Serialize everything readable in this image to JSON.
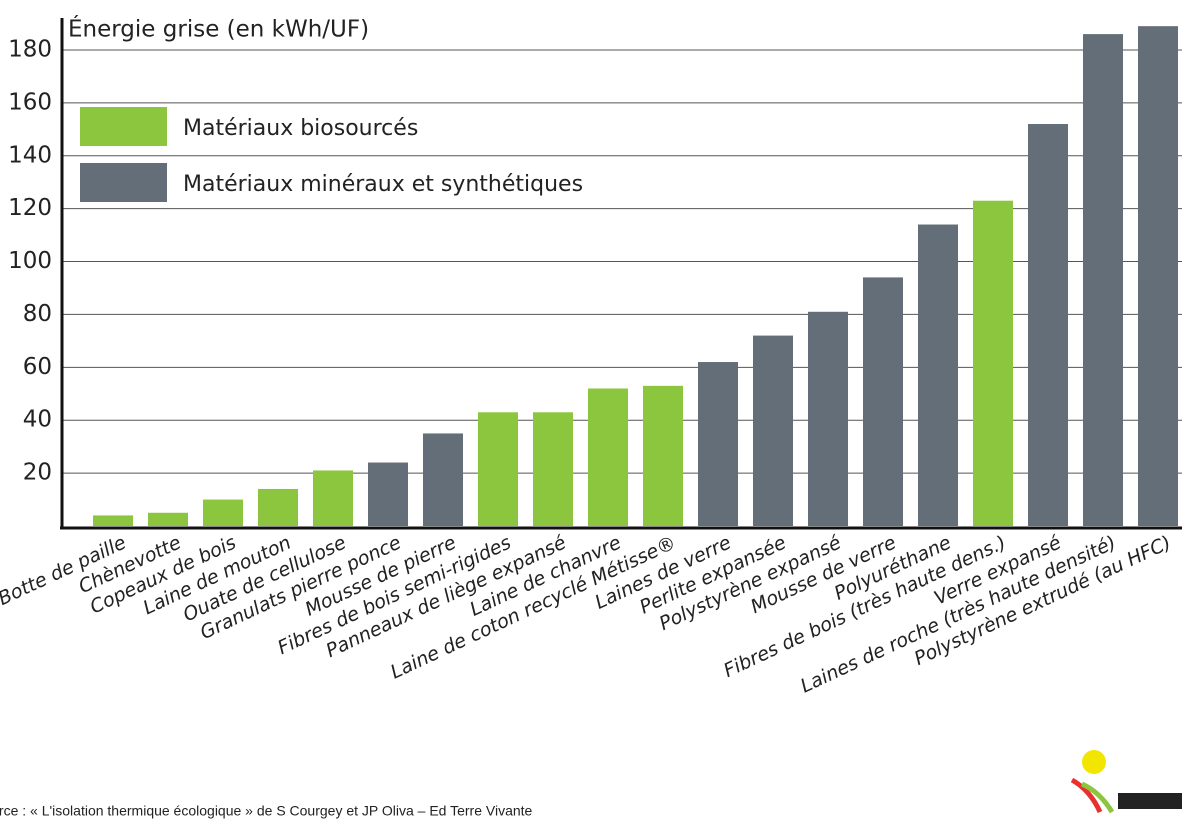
{
  "chart_data": {
    "type": "bar",
    "title": "Énergie grise (en kWh/UF)",
    "source": "Source :  « L'isolation thermique écologique » de S Courgey et JP Oliva – Ed Terre Vivante",
    "categories": [
      "Botte de paille",
      "Chènevotte",
      "Copeaux de bois",
      "Laine de mouton",
      "Ouate de cellulose",
      "Granulats pierre ponce",
      "Mousse de pierre",
      "Fibres de bois semi-rigides",
      "Panneaux de liège expansé",
      "Laine de chanvre",
      "Laine de coton recyclé Métisse®",
      "Laines de verre",
      "Perlite expansée",
      "Polystyrène expansé",
      "Mousse de verre",
      "Polyuréthane",
      "Fibres de bois (très haute dens.)",
      "Verre expansé",
      "Laines de roche (très haute densité)",
      "Polystyrène extrudé (au HFC)"
    ],
    "series": [
      {
        "name": "Matériaux biosourcés",
        "color": "#8cc63f",
        "values": [
          4,
          5,
          10,
          14,
          21,
          null,
          null,
          43,
          43,
          52,
          53,
          null,
          null,
          null,
          null,
          null,
          123,
          null,
          null,
          null
        ]
      },
      {
        "name": "Matériaux minéraux et synthétiques",
        "color": "#646e78",
        "values": [
          null,
          null,
          null,
          null,
          null,
          24,
          35,
          null,
          null,
          null,
          null,
          62,
          72,
          81,
          94,
          114,
          null,
          152,
          186,
          189
        ]
      }
    ],
    "ylim": [
      0,
      195
    ],
    "yticks": [
      20,
      40,
      60,
      80,
      100,
      120,
      140,
      160,
      180
    ],
    "grid": true,
    "legend": "upper left"
  }
}
